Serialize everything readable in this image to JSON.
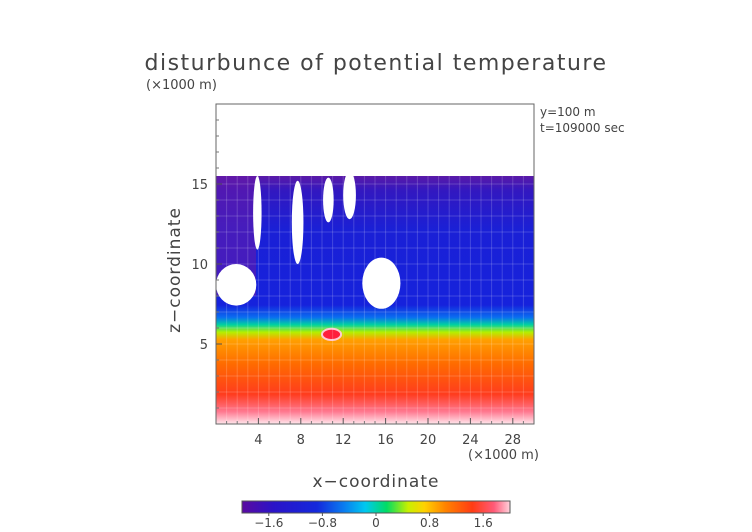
{
  "chart_data": {
    "type": "heatmap",
    "title": "disturbunce of potential temperature",
    "xlabel": "x−coordinate",
    "ylabel": "z−coordinate",
    "x_unit": "(×1000 m)",
    "z_unit": "(×1000 m)",
    "info_lines": [
      "y=100 m",
      "t=109000 sec"
    ],
    "xlim": [
      0,
      30
    ],
    "ylim": [
      0,
      20
    ],
    "x_ticks": [
      4,
      8,
      12,
      16,
      20,
      24,
      28
    ],
    "x_tick_labels": [
      "4",
      "8",
      "12",
      "16",
      "20",
      "24",
      "28"
    ],
    "y_ticks": [
      5,
      10,
      15
    ],
    "y_tick_labels": [
      "5",
      "10",
      "15"
    ],
    "colorbar": {
      "min": -2.0,
      "max": 2.0,
      "tick_values": [
        -1.6,
        -0.8,
        0,
        0.8,
        1.6
      ],
      "tick_labels": [
        "−1.6",
        "−0.8",
        "0",
        "0.8",
        "1.6"
      ],
      "colors": [
        "#5a0aa0",
        "#2a14c8",
        "#1428dc",
        "#0a7cf0",
        "#00c8f0",
        "#00dc64",
        "#c8f000",
        "#ffd200",
        "#ff8200",
        "#ff3c14",
        "#ff5a78",
        "#ffd2dc"
      ]
    },
    "field_top_km": 15.5,
    "mixed_layer_top_km": 5.5,
    "cloud_holes": [
      {
        "x_km": 1.9,
        "z_km": 8.7,
        "rx_km": 1.9,
        "rz_km": 1.3
      },
      {
        "x_km": 15.6,
        "z_km": 8.8,
        "rx_km": 1.8,
        "rz_km": 1.6
      }
    ],
    "upper_gaps": [
      {
        "x_km": 3.9,
        "z_km": 13.2,
        "rx_km": 0.4,
        "rz_km": 2.3
      },
      {
        "x_km": 7.7,
        "z_km": 12.6,
        "rx_km": 0.55,
        "rz_km": 2.6
      },
      {
        "x_km": 10.6,
        "z_km": 14.0,
        "rx_km": 0.5,
        "rz_km": 1.4
      },
      {
        "x_km": 12.6,
        "z_km": 14.3,
        "rx_km": 0.6,
        "rz_km": 1.5
      }
    ],
    "hot_spot": {
      "x_km": 10.9,
      "z_km": 5.6,
      "value": 1.2
    }
  }
}
